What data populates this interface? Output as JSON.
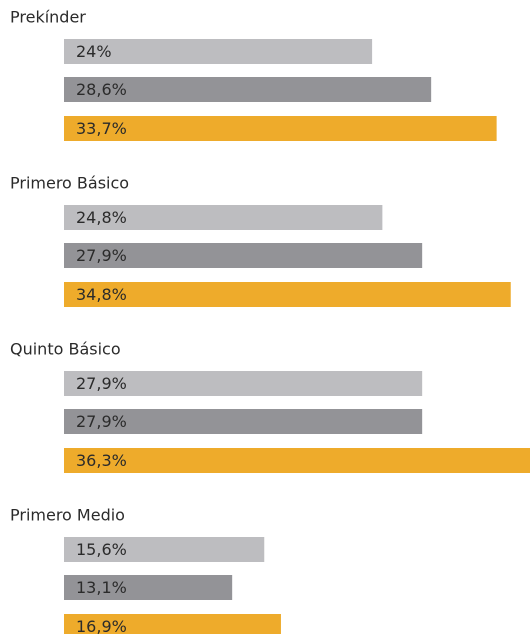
{
  "chart_data": {
    "type": "bar",
    "orientation": "horizontal",
    "categories": [
      "Prekínder",
      "Primero Básico",
      "Quinto Básico",
      "Primero Medio"
    ],
    "series": [
      {
        "color": "#bdbdc0",
        "values": [
          24,
          24.8,
          27.9,
          15.6
        ],
        "value_labels": [
          "24%",
          "24,8%",
          "27,9%",
          "15,6%"
        ]
      },
      {
        "color": "#939397",
        "values": [
          28.6,
          27.9,
          27.9,
          13.1
        ],
        "value_labels": [
          "28,6%",
          "27,9%",
          "27,9%",
          "13,1%"
        ]
      },
      {
        "color": "#eeab2b",
        "values": [
          33.7,
          34.8,
          36.3,
          16.9
        ],
        "value_labels": [
          "33,7%",
          "34,8%",
          "36,3%",
          "16,9%"
        ]
      }
    ]
  }
}
